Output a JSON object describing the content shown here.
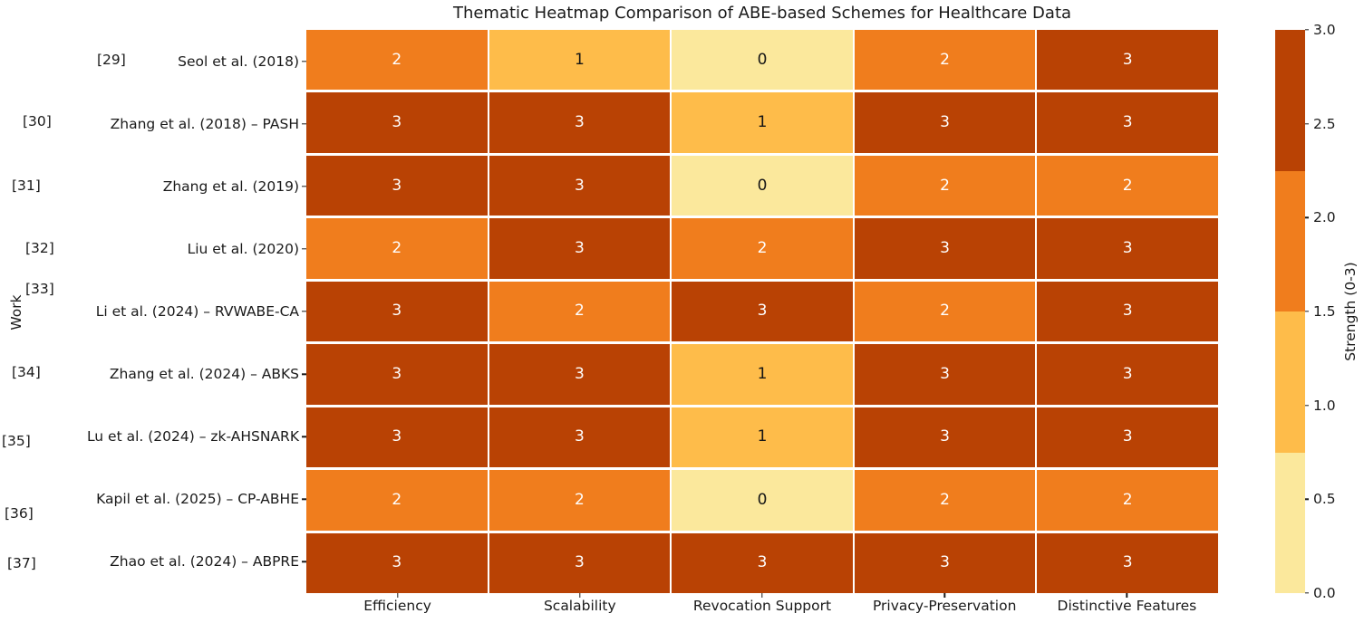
{
  "chart_data": {
    "type": "heatmap",
    "title": "Thematic Heatmap Comparison of ABE-based Schemes for Healthcare Data",
    "ylabel": "Work",
    "colorbar_label": "Strength (0-3)",
    "colorbar_ticks": [
      "3.0",
      "2.5",
      "2.0",
      "1.5",
      "1.0",
      "0.5",
      "0.0"
    ],
    "vmin": 0,
    "vmax": 3,
    "columns": [
      "Efficiency",
      "Scalability",
      "Revocation Support",
      "Privacy-Preservation",
      "Distinctive Features"
    ],
    "rows": [
      {
        "citation": "[29]",
        "label": "Seol et al. (2018)",
        "values": [
          2,
          1,
          0,
          2,
          3
        ]
      },
      {
        "citation": "[30]",
        "label": "Zhang et al. (2018) – PASH",
        "values": [
          3,
          3,
          1,
          3,
          3
        ]
      },
      {
        "citation": "[31]",
        "label": "Zhang et al. (2019)",
        "values": [
          3,
          3,
          0,
          2,
          2
        ]
      },
      {
        "citation": "[32]",
        "label": "Liu et al. (2020)",
        "values": [
          2,
          3,
          2,
          3,
          3
        ]
      },
      {
        "citation": "[33]",
        "label": "Li et al. (2024) – RVWABE-CA",
        "values": [
          3,
          2,
          3,
          2,
          3
        ]
      },
      {
        "citation": "[34]",
        "label": "Zhang et al. (2024) – ABKS",
        "values": [
          3,
          3,
          1,
          3,
          3
        ]
      },
      {
        "citation": "[35]",
        "label": "Lu et al. (2024) – zk-AHSNARK",
        "values": [
          3,
          3,
          1,
          3,
          3
        ]
      },
      {
        "citation": "[36]",
        "label": "Kapil et al. (2025) – CP-ABHE",
        "values": [
          2,
          2,
          0,
          2,
          2
        ]
      },
      {
        "citation": "[37]",
        "label": "Zhao et al. (2024) – ABPRE",
        "values": [
          3,
          3,
          3,
          3,
          3
        ]
      }
    ],
    "palette": {
      "0": "#fbe89c",
      "1": "#febc4a",
      "2": "#f07d1d",
      "3": "#b94204"
    },
    "annot_color_on_dark": "#ffffff",
    "annot_color_on_light": "#151515"
  }
}
